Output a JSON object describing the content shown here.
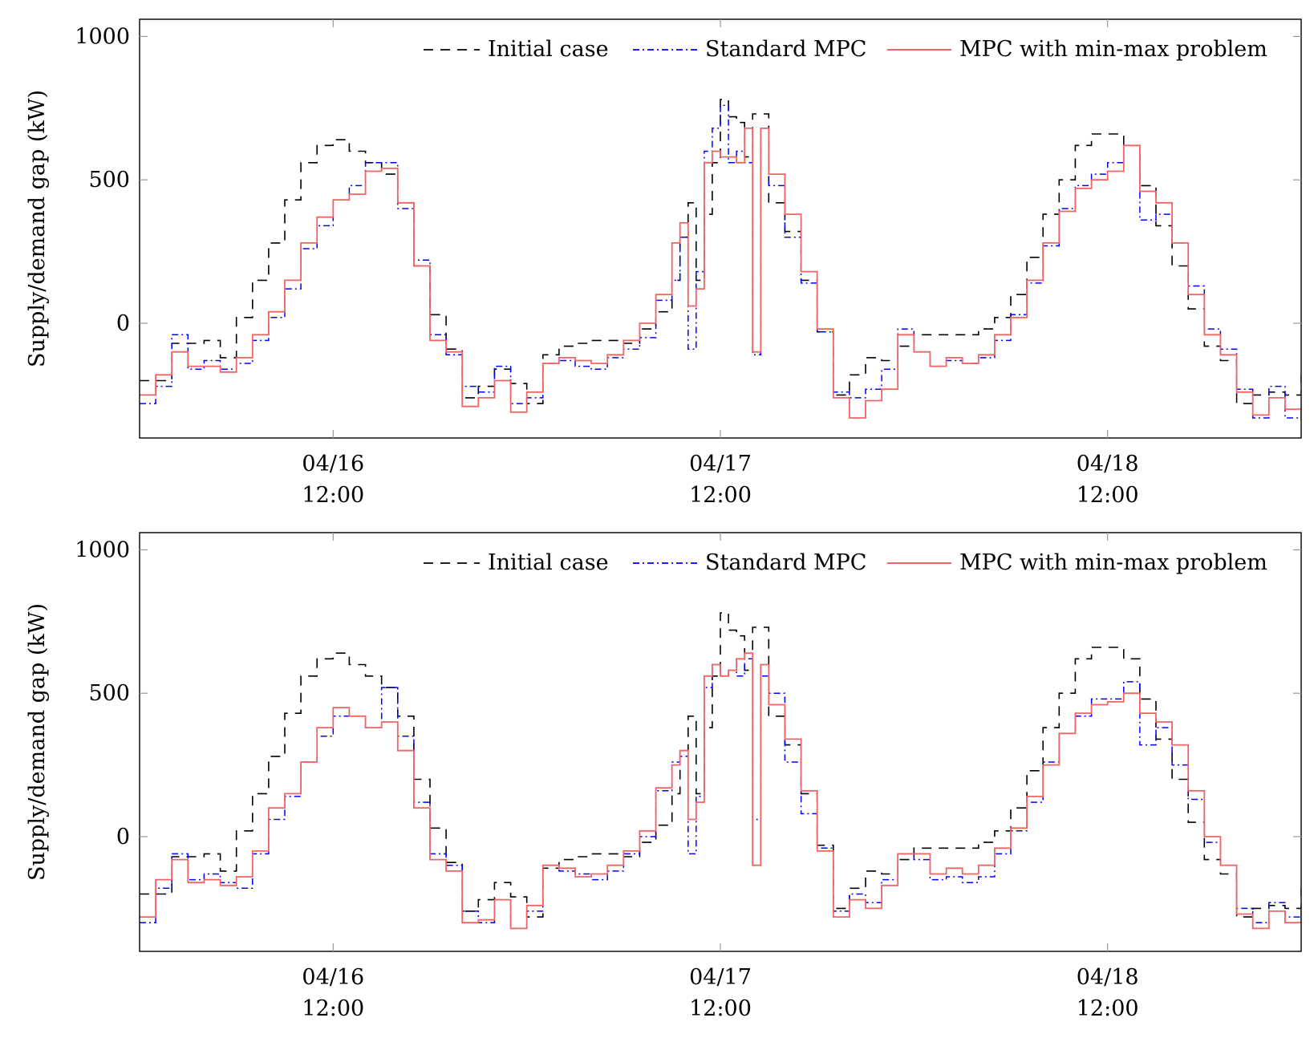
{
  "colors": {
    "initial": "#000000",
    "standard": "#0000ff",
    "minmax": "#f26464",
    "axis": "#000000",
    "grid_tick": "#999999"
  },
  "chart_data": [
    {
      "type": "line",
      "title": "",
      "xlabel": "",
      "ylabel": "Supply/demand gap (kW)",
      "xlim": [
        0,
        72
      ],
      "ylim": [
        -400,
        1060
      ],
      "y_ticks": [
        0,
        500,
        1000
      ],
      "y_tick_labels": [
        "0",
        "500",
        "1000"
      ],
      "x_ticks": [
        12,
        36,
        60
      ],
      "x_tick_labels": [
        {
          "date": "04/16",
          "time": "12:00"
        },
        {
          "date": "04/17",
          "time": "12:00"
        },
        {
          "date": "04/18",
          "time": "12:00"
        }
      ],
      "x_unit": "hours from 04/16 00:00",
      "legend_position": "top-right",
      "series": [
        {
          "name": "Initial case",
          "style": "dashed",
          "x": [
            0,
            2,
            4,
            5,
            6,
            7,
            8,
            9,
            10,
            11,
            12,
            13,
            14,
            15,
            16,
            17,
            18,
            19,
            20,
            21,
            22,
            23,
            24,
            25,
            26,
            27,
            28,
            30,
            31,
            32,
            33,
            33.5,
            34,
            34.5,
            35,
            35.5,
            36,
            36.5,
            37,
            37.5,
            38,
            39,
            40,
            41,
            42,
            43,
            44,
            45,
            46,
            47,
            48,
            50,
            52,
            53,
            54,
            55,
            56,
            57,
            58,
            59,
            60,
            61,
            62,
            63,
            64,
            65,
            66,
            67,
            68,
            69,
            70,
            71,
            72
          ],
          "values": [
            -200,
            -70,
            -60,
            -120,
            20,
            150,
            280,
            430,
            560,
            620,
            640,
            600,
            560,
            520,
            420,
            200,
            30,
            -90,
            -260,
            -220,
            -160,
            -210,
            -280,
            -110,
            -80,
            -70,
            -60,
            -70,
            -20,
            40,
            150,
            300,
            420,
            150,
            380,
            560,
            780,
            720,
            700,
            580,
            730,
            420,
            320,
            150,
            -30,
            -250,
            -180,
            -120,
            -130,
            -80,
            -40,
            -40,
            -20,
            20,
            100,
            230,
            380,
            500,
            620,
            660,
            660,
            620,
            480,
            340,
            200,
            50,
            -80,
            -130,
            -280,
            -250,
            -240,
            -250,
            -180
          ]
        },
        {
          "name": "Standard MPC",
          "style": "dashdot",
          "x": [
            0,
            1,
            2,
            3,
            4,
            5,
            6,
            7,
            8,
            9,
            10,
            11,
            12,
            13,
            14,
            15,
            16,
            17,
            18,
            19,
            20,
            21,
            22,
            23,
            24,
            25,
            26,
            27,
            28,
            29,
            30,
            31,
            32,
            33,
            33.5,
            34,
            34.5,
            35,
            35.5,
            36,
            36.5,
            37,
            37.5,
            38,
            38.5,
            39,
            40,
            41,
            42,
            43,
            44,
            45,
            46,
            47,
            48,
            49,
            50,
            51,
            52,
            53,
            54,
            55,
            56,
            57,
            58,
            59,
            60,
            61,
            62,
            63,
            64,
            65,
            66,
            67,
            68,
            69,
            70,
            71,
            72
          ],
          "values": [
            -280,
            -220,
            -40,
            -160,
            -130,
            -160,
            -140,
            -60,
            20,
            120,
            260,
            340,
            430,
            480,
            560,
            560,
            400,
            220,
            -40,
            -110,
            -220,
            -240,
            -150,
            -280,
            -260,
            -140,
            -130,
            -150,
            -160,
            -120,
            -90,
            -50,
            80,
            150,
            300,
            -90,
            180,
            600,
            680,
            760,
            560,
            600,
            560,
            -110,
            680,
            480,
            300,
            140,
            -30,
            -240,
            -260,
            -230,
            -160,
            -20,
            -100,
            -150,
            -130,
            -140,
            -120,
            -60,
            30,
            140,
            270,
            400,
            480,
            520,
            560,
            620,
            360,
            380,
            280,
            130,
            -20,
            -90,
            -230,
            -330,
            -220,
            -330,
            -280
          ]
        },
        {
          "name": "MPC with min-max problem",
          "style": "solid",
          "x": [
            0,
            1,
            2,
            3,
            4,
            5,
            6,
            7,
            8,
            9,
            10,
            11,
            12,
            13,
            14,
            15,
            16,
            17,
            18,
            19,
            20,
            21,
            22,
            23,
            24,
            25,
            26,
            27,
            28,
            29,
            30,
            31,
            32,
            33,
            33.5,
            34,
            34.5,
            35,
            35.5,
            36,
            36.5,
            37,
            37.5,
            38,
            38.5,
            39,
            40,
            41,
            42,
            43,
            44,
            45,
            46,
            47,
            48,
            49,
            50,
            51,
            52,
            53,
            54,
            55,
            56,
            57,
            58,
            59,
            60,
            61,
            62,
            63,
            64,
            65,
            66,
            67,
            68,
            69,
            70,
            71,
            72
          ],
          "values": [
            -250,
            -180,
            -100,
            -150,
            -150,
            -170,
            -120,
            -40,
            40,
            150,
            280,
            370,
            430,
            450,
            530,
            540,
            420,
            200,
            -60,
            -100,
            -290,
            -260,
            -200,
            -310,
            -240,
            -140,
            -120,
            -130,
            -140,
            -110,
            -60,
            0,
            100,
            280,
            350,
            60,
            120,
            560,
            600,
            580,
            580,
            560,
            680,
            -100,
            680,
            520,
            380,
            180,
            -20,
            -260,
            -330,
            -270,
            -230,
            -40,
            -100,
            -150,
            -120,
            -140,
            -110,
            -40,
            20,
            150,
            280,
            390,
            470,
            500,
            530,
            620,
            460,
            420,
            280,
            100,
            -40,
            -110,
            -240,
            -320,
            -260,
            -300,
            -340
          ]
        }
      ]
    },
    {
      "type": "line",
      "title": "",
      "xlabel": "",
      "ylabel": "Supply/demand gap (kW)",
      "xlim": [
        0,
        72
      ],
      "ylim": [
        -400,
        1060
      ],
      "y_ticks": [
        0,
        500,
        1000
      ],
      "y_tick_labels": [
        "0",
        "500",
        "1000"
      ],
      "x_ticks": [
        12,
        36,
        60
      ],
      "x_tick_labels": [
        {
          "date": "04/16",
          "time": "12:00"
        },
        {
          "date": "04/17",
          "time": "12:00"
        },
        {
          "date": "04/18",
          "time": "12:00"
        }
      ],
      "x_unit": "hours from 04/16 00:00",
      "legend_position": "top-right",
      "series": [
        {
          "name": "Initial case",
          "style": "dashed",
          "x": [
            0,
            2,
            4,
            5,
            6,
            7,
            8,
            9,
            10,
            11,
            12,
            13,
            14,
            15,
            16,
            17,
            18,
            19,
            20,
            21,
            22,
            23,
            24,
            25,
            26,
            27,
            28,
            30,
            31,
            32,
            33,
            33.5,
            34,
            34.5,
            35,
            35.5,
            36,
            36.5,
            37,
            37.5,
            38,
            39,
            40,
            41,
            42,
            43,
            44,
            45,
            46,
            47,
            48,
            50,
            52,
            53,
            54,
            55,
            56,
            57,
            58,
            59,
            60,
            61,
            62,
            63,
            64,
            65,
            66,
            67,
            68,
            69,
            70,
            71,
            72
          ],
          "values": [
            -200,
            -70,
            -60,
            -120,
            20,
            150,
            280,
            430,
            560,
            620,
            640,
            600,
            560,
            520,
            420,
            200,
            30,
            -90,
            -260,
            -220,
            -160,
            -210,
            -280,
            -110,
            -80,
            -70,
            -60,
            -70,
            -20,
            40,
            150,
            300,
            420,
            150,
            380,
            560,
            780,
            720,
            700,
            580,
            730,
            420,
            320,
            150,
            -30,
            -250,
            -180,
            -120,
            -130,
            -80,
            -40,
            -40,
            -20,
            20,
            100,
            230,
            380,
            500,
            620,
            660,
            660,
            620,
            480,
            340,
            200,
            50,
            -80,
            -130,
            -280,
            -250,
            -240,
            -250,
            -180
          ]
        },
        {
          "name": "Standard MPC",
          "style": "dashdot",
          "x": [
            0,
            1,
            2,
            3,
            4,
            5,
            6,
            7,
            8,
            9,
            10,
            11,
            12,
            13,
            14,
            15,
            16,
            17,
            18,
            19,
            20,
            21,
            22,
            23,
            24,
            25,
            26,
            27,
            28,
            29,
            30,
            31,
            32,
            33,
            33.5,
            34,
            34.5,
            35,
            35.5,
            36,
            36.5,
            37,
            37.5,
            38,
            38.5,
            39,
            40,
            41,
            42,
            43,
            44,
            45,
            46,
            47,
            48,
            49,
            50,
            51,
            52,
            53,
            54,
            55,
            56,
            57,
            58,
            59,
            60,
            61,
            62,
            63,
            64,
            65,
            66,
            67,
            68,
            69,
            70,
            71,
            72
          ],
          "values": [
            -300,
            -180,
            -60,
            -150,
            -130,
            -160,
            -180,
            -60,
            60,
            140,
            260,
            350,
            420,
            420,
            380,
            520,
            350,
            120,
            -60,
            -100,
            -260,
            -300,
            -220,
            -320,
            -260,
            -100,
            -120,
            -130,
            -150,
            -120,
            -60,
            0,
            160,
            260,
            280,
            -60,
            140,
            520,
            600,
            560,
            580,
            560,
            620,
            60,
            560,
            500,
            260,
            80,
            -40,
            -260,
            -200,
            -230,
            -150,
            -60,
            -80,
            -150,
            -140,
            -160,
            -140,
            -60,
            20,
            120,
            260,
            360,
            420,
            480,
            480,
            540,
            320,
            380,
            250,
            130,
            -20,
            -100,
            -250,
            -300,
            -230,
            -280,
            -240
          ]
        },
        {
          "name": "MPC with min-max problem",
          "style": "solid",
          "x": [
            0,
            1,
            2,
            3,
            4,
            5,
            6,
            7,
            8,
            9,
            10,
            11,
            12,
            13,
            14,
            15,
            16,
            17,
            18,
            19,
            20,
            21,
            22,
            23,
            24,
            25,
            26,
            27,
            28,
            29,
            30,
            31,
            32,
            33,
            33.5,
            34,
            34.5,
            35,
            35.5,
            36,
            36.5,
            37,
            37.5,
            38,
            38.5,
            39,
            40,
            41,
            42,
            43,
            44,
            45,
            46,
            47,
            48,
            49,
            50,
            51,
            52,
            53,
            54,
            55,
            56,
            57,
            58,
            59,
            60,
            61,
            62,
            63,
            64,
            65,
            66,
            67,
            68,
            69,
            70,
            71,
            72
          ],
          "values": [
            -280,
            -150,
            -80,
            -160,
            -150,
            -170,
            -140,
            -50,
            100,
            150,
            260,
            380,
            450,
            420,
            380,
            400,
            300,
            100,
            -80,
            -120,
            -300,
            -290,
            -220,
            -320,
            -240,
            -100,
            -110,
            -140,
            -130,
            -100,
            -50,
            20,
            170,
            250,
            300,
            60,
            120,
            560,
            600,
            560,
            580,
            620,
            640,
            -100,
            600,
            460,
            340,
            160,
            -50,
            -280,
            -220,
            -250,
            -170,
            -60,
            -60,
            -130,
            -110,
            -130,
            -100,
            -40,
            30,
            140,
            250,
            360,
            430,
            460,
            470,
            500,
            430,
            400,
            320,
            160,
            0,
            -100,
            -270,
            -320,
            -260,
            -300,
            -250
          ]
        }
      ]
    }
  ]
}
